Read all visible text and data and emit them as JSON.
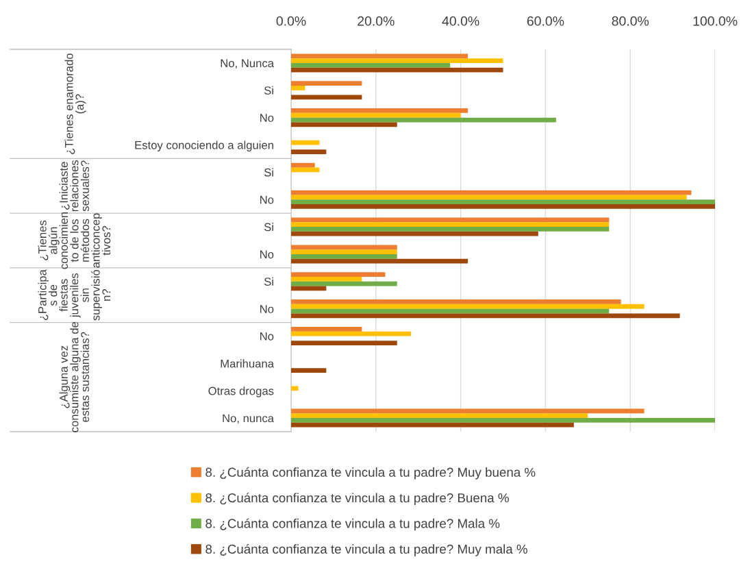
{
  "chart_data": {
    "type": "bar",
    "orientation": "horizontal",
    "categories": [
      "No, Nunca",
      "Si",
      "No",
      "Estoy conociendo a alguien",
      "Si",
      "No",
      "Si",
      "No",
      "Si",
      "No",
      "No",
      "Marihuana",
      "Otras drogas",
      "No, nunca"
    ],
    "series": [
      {
        "name": "8. ¿Cuánta confianza te vincula a tu padre? Muy buena %",
        "color": "#ed7d31",
        "values": [
          41.7,
          16.7,
          41.7,
          0,
          5.6,
          94.4,
          75,
          25,
          22.2,
          77.8,
          16.7,
          0,
          0,
          83.3
        ]
      },
      {
        "name": "8. ¿Cuánta confianza te vincula a tu padre? Buena %",
        "color": "#ffc000",
        "values": [
          50,
          3.3,
          40,
          6.7,
          6.7,
          93.3,
          75,
          25,
          16.7,
          83.3,
          28.3,
          0,
          1.7,
          70
        ]
      },
      {
        "name": "8. ¿Cuánta confianza te vincula a tu padre? Mala %",
        "color": "#70ad47",
        "values": [
          37.5,
          0,
          62.5,
          0,
          0,
          100,
          75,
          25,
          25,
          75,
          0,
          0,
          0,
          100
        ]
      },
      {
        "name": "8. ¿Cuánta confianza te vincula a tu padre? Muy mala %",
        "color": "#9e480e",
        "values": [
          50,
          16.7,
          25,
          8.3,
          0,
          100,
          58.3,
          41.7,
          8.3,
          91.7,
          25,
          8.3,
          0,
          66.7
        ]
      }
    ],
    "annotations": [
      "¿Tienes enamorado (a)?",
      "¿Iniciaste relaciones sexuales?",
      "¿Tienes algún conocimiento de los métodos anticonceptivos?",
      "¿Participas de fiestas juveniles sin supervisión?",
      "¿Alguna vez consumiste alguna de estas sustancias?"
    ],
    "xlim": [
      0,
      100
    ],
    "xticks": [
      {
        "value": 0,
        "label": "0.0%"
      },
      {
        "value": 20,
        "label": "20.0%"
      },
      {
        "value": 40,
        "label": "40.0%"
      },
      {
        "value": 60,
        "label": "60.0%"
      },
      {
        "value": 80,
        "label": "80.0%"
      },
      {
        "value": 100,
        "label": "100.0%"
      }
    ],
    "grid": "x",
    "legend": "bottom"
  }
}
